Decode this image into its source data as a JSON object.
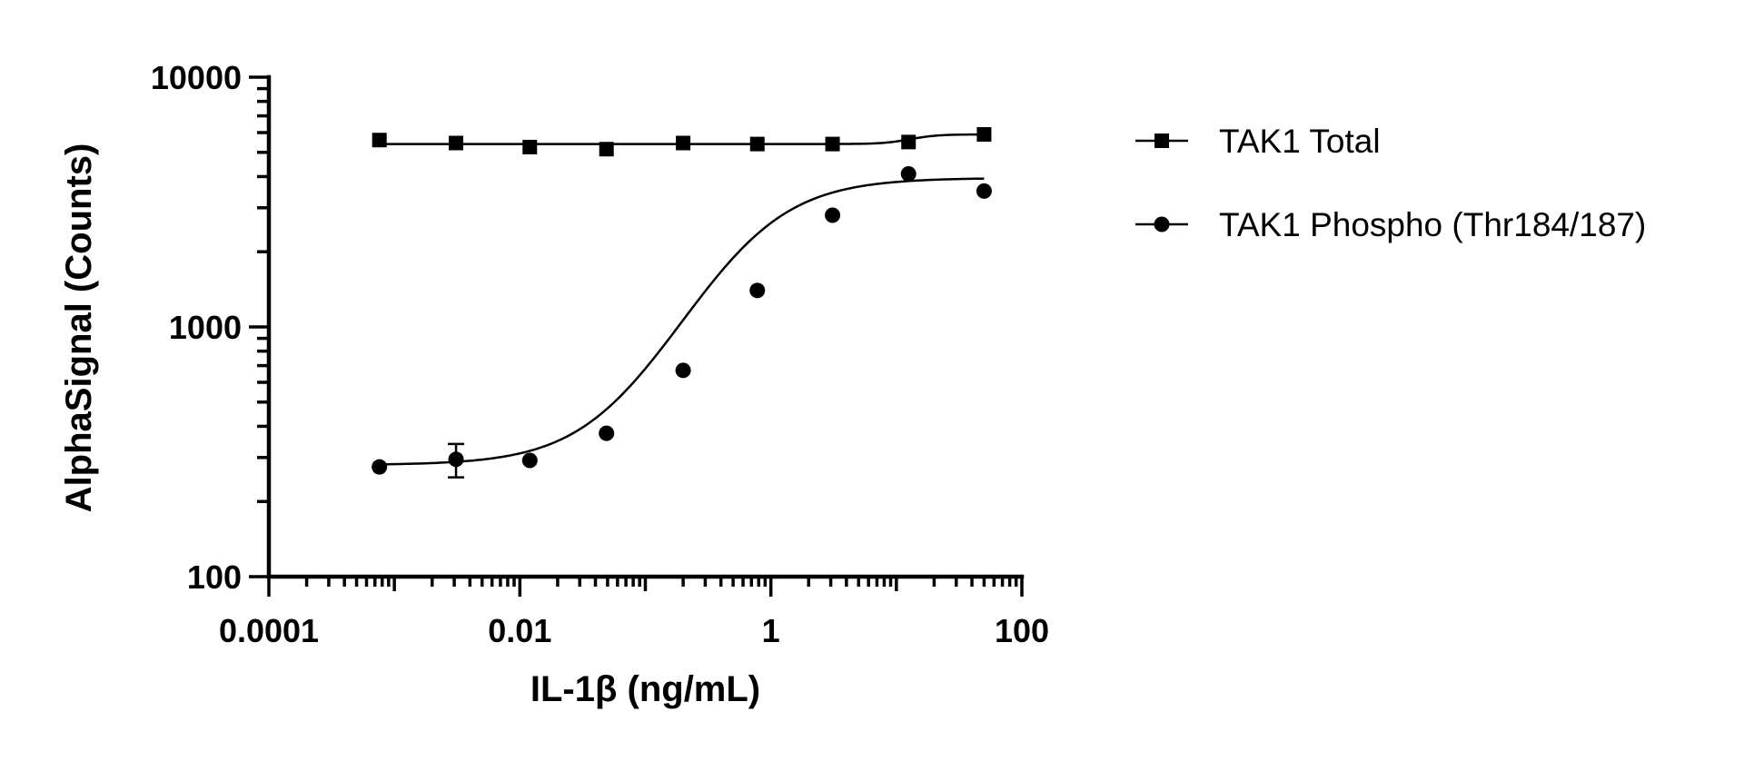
{
  "chart_data": {
    "type": "scatter",
    "xlabel": "IL-1β (ng/mL)",
    "ylabel": "AlphaSignal (Counts)",
    "xscale": "log",
    "yscale": "log",
    "xlim": [
      0.0001,
      100
    ],
    "ylim": [
      100,
      10000
    ],
    "x_ticks": [
      {
        "value": 0.0001,
        "label": "0.0001"
      },
      {
        "value": 0.01,
        "label": "0.01"
      },
      {
        "value": 1,
        "label": "1"
      },
      {
        "value": 100,
        "label": "100"
      }
    ],
    "y_ticks": [
      {
        "value": 100,
        "label": "100"
      },
      {
        "value": 1000,
        "label": "1000"
      },
      {
        "value": 10000,
        "label": "10000"
      }
    ],
    "grid": false,
    "legend_position": "right",
    "series": [
      {
        "name": "TAK1 Total",
        "marker": "square",
        "x": [
          0.00076,
          0.0031,
          0.012,
          0.049,
          0.2,
          0.78,
          3.1,
          12.5,
          50
        ],
        "y": [
          5600,
          5450,
          5250,
          5150,
          5450,
          5400,
          5400,
          5500,
          5900
        ],
        "fit": {
          "bottom": 5400,
          "top": 5900,
          "ec50": 13,
          "hill": 4
        }
      },
      {
        "name": "TAK1 Phospho (Thr184/187)",
        "marker": "circle",
        "x": [
          0.00076,
          0.0031,
          0.012,
          0.049,
          0.2,
          0.78,
          3.1,
          12.5,
          50
        ],
        "y": [
          275,
          295,
          292,
          375,
          670,
          1400,
          2800,
          4100,
          3500
        ],
        "y_err": [
          0,
          45,
          0,
          0,
          0,
          0,
          0,
          0,
          0
        ],
        "fit": {
          "bottom": 280,
          "top": 3950,
          "ec50": 0.62,
          "hill": 1.15
        }
      }
    ]
  }
}
